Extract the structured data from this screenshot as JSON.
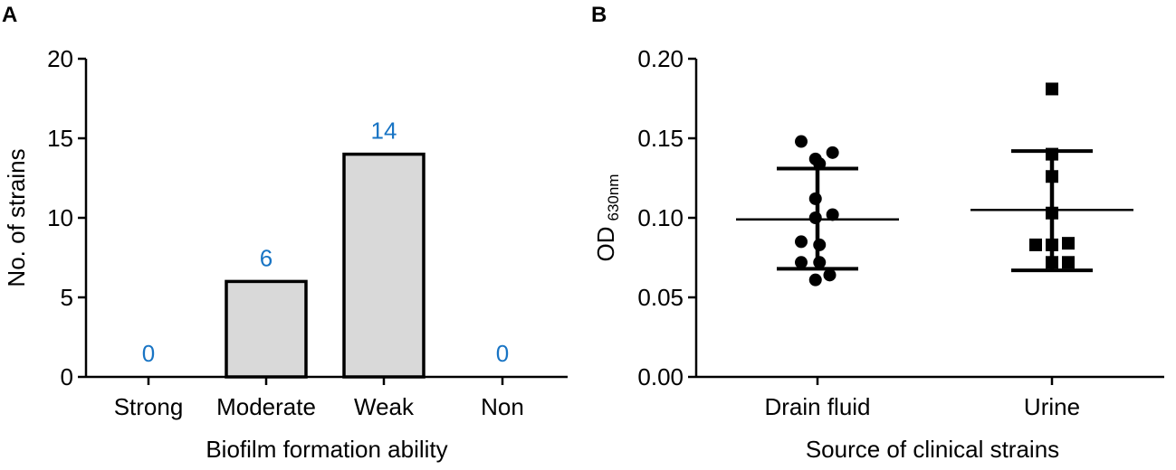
{
  "colors": {
    "bar_fill": "#d9d9d9",
    "bar_stroke": "#000000",
    "data_label": "#1874c4",
    "axis": "#000000",
    "marker": "#000000"
  },
  "chart_data": [
    {
      "panel": "A",
      "type": "bar",
      "title": "",
      "xlabel": "Biofilm formation ability",
      "ylabel": "No. of strains",
      "categories": [
        "Strong",
        "Moderate",
        "Weak",
        "Non"
      ],
      "values": [
        0,
        6,
        14,
        0
      ],
      "data_labels": [
        "0",
        "6",
        "14",
        "0"
      ],
      "ylim": [
        0,
        20
      ],
      "yticks": [
        "0",
        "5",
        "10",
        "15",
        "20"
      ]
    },
    {
      "panel": "B",
      "type": "scatter",
      "title": "",
      "xlabel": "Source of clinical strains",
      "ylabel": "OD",
      "ylabel_subscript": "630nm",
      "categories": [
        "Drain fluid",
        "Urine"
      ],
      "ylim": [
        0,
        0.2
      ],
      "yticks": [
        "0.00",
        "0.05",
        "0.10",
        "0.15",
        "0.20"
      ],
      "series": [
        {
          "name": "Drain fluid",
          "marker": "circle",
          "points": [
            {
              "offset": -0.4,
              "y": 0.148
            },
            {
              "offset": 0.37,
              "y": 0.141
            },
            {
              "offset": -0.05,
              "y": 0.137
            },
            {
              "offset": 0.05,
              "y": 0.134
            },
            {
              "offset": -0.05,
              "y": 0.112
            },
            {
              "offset": -0.05,
              "y": 0.1
            },
            {
              "offset": 0.37,
              "y": 0.102
            },
            {
              "offset": -0.4,
              "y": 0.085
            },
            {
              "offset": 0.05,
              "y": 0.083
            },
            {
              "offset": -0.4,
              "y": 0.072
            },
            {
              "offset": 0.05,
              "y": 0.072
            },
            {
              "offset": -0.05,
              "y": 0.061
            },
            {
              "offset": 0.3,
              "y": 0.064
            }
          ],
          "mean": 0.099,
          "sd_upper": 0.131,
          "sd_lower": 0.068
        },
        {
          "name": "Urine",
          "marker": "square",
          "points": [
            {
              "offset": 0,
              "y": 0.181
            },
            {
              "offset": 0,
              "y": 0.14
            },
            {
              "offset": 0,
              "y": 0.126
            },
            {
              "offset": 0,
              "y": 0.103
            },
            {
              "offset": -0.4,
              "y": 0.083
            },
            {
              "offset": 0,
              "y": 0.083
            },
            {
              "offset": 0.4,
              "y": 0.084
            },
            {
              "offset": 0,
              "y": 0.072
            },
            {
              "offset": 0.4,
              "y": 0.072
            }
          ],
          "mean": 0.105,
          "sd_upper": 0.142,
          "sd_lower": 0.067
        }
      ]
    }
  ]
}
